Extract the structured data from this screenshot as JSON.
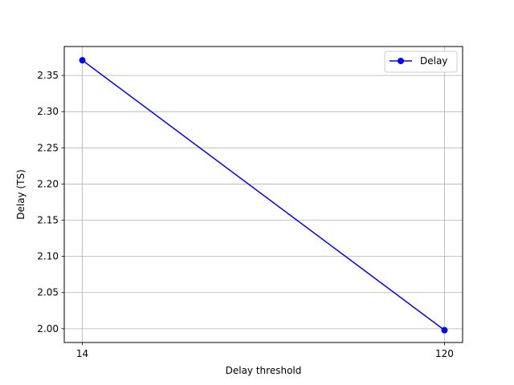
{
  "chart_data": {
    "type": "line",
    "title": "",
    "xlabel": "Delay threshold",
    "ylabel": "Delay (TS)",
    "x": [
      14,
      120
    ],
    "x_tick_labels": [
      "14",
      "120"
    ],
    "y_ticks": [
      2.0,
      2.05,
      2.1,
      2.15,
      2.2,
      2.25,
      2.3,
      2.35
    ],
    "y_tick_labels": [
      "2.00",
      "2.05",
      "2.10",
      "2.15",
      "2.20",
      "2.25",
      "2.30",
      "2.35"
    ],
    "ylim": [
      1.981,
      2.39
    ],
    "xlim": [
      8.7,
      125.3
    ],
    "grid": true,
    "legend_position": "top-right",
    "series": [
      {
        "name": "Delay",
        "values": [
          2.371,
          1.998
        ],
        "color": "#0000ff",
        "marker": "circle"
      }
    ]
  }
}
